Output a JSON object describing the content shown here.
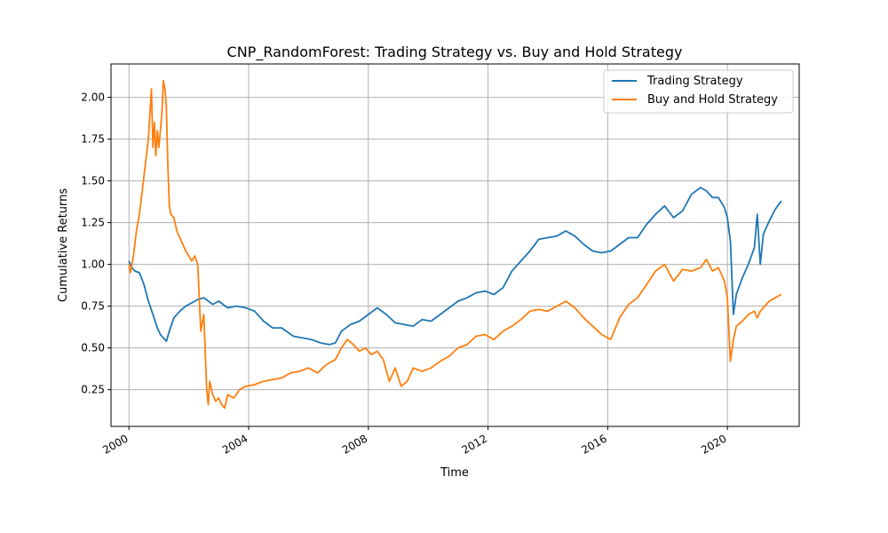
{
  "chart_data": {
    "type": "line",
    "title": "CNP_RandomForest: Trading Strategy vs. Buy and Hold Strategy",
    "xlabel": "Time",
    "ylabel": "Cumulative Returns",
    "xlim": [
      1999.4,
      2022.4
    ],
    "ylim": [
      0.03,
      2.2
    ],
    "x_ticks": [
      2000,
      2004,
      2008,
      2012,
      2016,
      2020
    ],
    "x_tick_labels": [
      "2000",
      "2004",
      "2008",
      "2012",
      "2016",
      "2020"
    ],
    "y_ticks": [
      0.25,
      0.5,
      0.75,
      1.0,
      1.25,
      1.5,
      1.75,
      2.0
    ],
    "y_tick_labels": [
      "0.25",
      "0.50",
      "0.75",
      "1.00",
      "1.25",
      "1.50",
      "1.75",
      "2.00"
    ],
    "grid": true,
    "legend_position": "top-right",
    "series": [
      {
        "name": "Trading Strategy",
        "color": "#1f77b4",
        "x": [
          2000.0,
          2000.1,
          2000.2,
          2000.35,
          2000.5,
          2000.65,
          2000.8,
          2000.95,
          2001.05,
          2001.15,
          2001.25,
          2001.35,
          2001.5,
          2001.7,
          2001.9,
          2002.1,
          2002.3,
          2002.5,
          2002.8,
          2003.0,
          2003.3,
          2003.6,
          2003.9,
          2004.2,
          2004.5,
          2004.8,
          2005.1,
          2005.5,
          2005.8,
          2006.1,
          2006.4,
          2006.7,
          2006.9,
          2007.1,
          2007.4,
          2007.7,
          2008.0,
          2008.3,
          2008.6,
          2008.9,
          2009.2,
          2009.5,
          2009.8,
          2010.1,
          2010.4,
          2010.7,
          2011.0,
          2011.3,
          2011.6,
          2011.9,
          2012.2,
          2012.5,
          2012.8,
          2013.1,
          2013.4,
          2013.7,
          2014.0,
          2014.3,
          2014.6,
          2014.9,
          2015.2,
          2015.5,
          2015.8,
          2016.1,
          2016.4,
          2016.7,
          2017.0,
          2017.3,
          2017.6,
          2017.9,
          2018.2,
          2018.5,
          2018.8,
          2019.1,
          2019.3,
          2019.5,
          2019.7,
          2019.9,
          2020.0,
          2020.1,
          2020.2,
          2020.3,
          2020.5,
          2020.7,
          2020.9,
          2021.0,
          2021.1,
          2021.2,
          2021.4,
          2021.6,
          2021.8
        ],
        "values": [
          1.02,
          0.98,
          0.96,
          0.95,
          0.88,
          0.78,
          0.7,
          0.62,
          0.58,
          0.56,
          0.54,
          0.6,
          0.68,
          0.72,
          0.75,
          0.77,
          0.79,
          0.8,
          0.76,
          0.78,
          0.74,
          0.75,
          0.74,
          0.72,
          0.66,
          0.62,
          0.62,
          0.57,
          0.56,
          0.55,
          0.53,
          0.52,
          0.53,
          0.6,
          0.64,
          0.66,
          0.7,
          0.74,
          0.7,
          0.65,
          0.64,
          0.63,
          0.67,
          0.66,
          0.7,
          0.74,
          0.78,
          0.8,
          0.83,
          0.84,
          0.82,
          0.86,
          0.96,
          1.02,
          1.08,
          1.15,
          1.16,
          1.17,
          1.2,
          1.17,
          1.12,
          1.08,
          1.07,
          1.08,
          1.12,
          1.16,
          1.16,
          1.24,
          1.3,
          1.35,
          1.28,
          1.32,
          1.42,
          1.46,
          1.44,
          1.4,
          1.4,
          1.34,
          1.28,
          1.14,
          0.7,
          0.82,
          0.92,
          1.0,
          1.1,
          1.3,
          1.0,
          1.18,
          1.26,
          1.33,
          1.38
        ]
      },
      {
        "name": "Buy and Hold Strategy",
        "color": "#ff7f0e",
        "x": [
          2000.0,
          2000.05,
          2000.15,
          2000.25,
          2000.35,
          2000.45,
          2000.55,
          2000.65,
          2000.75,
          2000.8,
          2000.85,
          2000.9,
          2000.95,
          2001.0,
          2001.1,
          2001.15,
          2001.2,
          2001.25,
          2001.3,
          2001.35,
          2001.4,
          2001.5,
          2001.6,
          2001.7,
          2001.8,
          2001.9,
          2002.0,
          2002.1,
          2002.2,
          2002.3,
          2002.4,
          2002.5,
          2002.6,
          2002.65,
          2002.7,
          2002.8,
          2002.9,
          2003.0,
          2003.1,
          2003.2,
          2003.3,
          2003.5,
          2003.7,
          2003.9,
          2004.2,
          2004.5,
          2004.8,
          2005.1,
          2005.4,
          2005.7,
          2006.0,
          2006.3,
          2006.6,
          2006.9,
          2007.1,
          2007.3,
          2007.5,
          2007.7,
          2007.9,
          2008.1,
          2008.3,
          2008.5,
          2008.7,
          2008.9,
          2009.1,
          2009.3,
          2009.5,
          2009.8,
          2010.1,
          2010.4,
          2010.7,
          2011.0,
          2011.3,
          2011.6,
          2011.9,
          2012.2,
          2012.5,
          2012.8,
          2013.1,
          2013.4,
          2013.7,
          2014.0,
          2014.3,
          2014.6,
          2014.9,
          2015.2,
          2015.5,
          2015.8,
          2016.1,
          2016.4,
          2016.7,
          2017.0,
          2017.3,
          2017.6,
          2017.9,
          2018.2,
          2018.5,
          2018.8,
          2019.1,
          2019.3,
          2019.5,
          2019.7,
          2019.9,
          2020.0,
          2020.1,
          2020.2,
          2020.3,
          2020.5,
          2020.7,
          2020.9,
          2021.0,
          2021.1,
          2021.2,
          2021.4,
          2021.6,
          2021.8
        ],
        "values": [
          1.0,
          0.95,
          1.05,
          1.2,
          1.3,
          1.45,
          1.6,
          1.75,
          2.05,
          1.7,
          1.85,
          1.65,
          1.8,
          1.7,
          1.9,
          2.1,
          2.05,
          1.95,
          1.6,
          1.35,
          1.3,
          1.28,
          1.2,
          1.16,
          1.12,
          1.08,
          1.05,
          1.02,
          1.05,
          1.0,
          0.6,
          0.7,
          0.25,
          0.16,
          0.3,
          0.22,
          0.18,
          0.2,
          0.16,
          0.14,
          0.22,
          0.2,
          0.25,
          0.27,
          0.28,
          0.3,
          0.31,
          0.32,
          0.35,
          0.36,
          0.38,
          0.35,
          0.4,
          0.43,
          0.5,
          0.55,
          0.52,
          0.48,
          0.5,
          0.46,
          0.48,
          0.43,
          0.3,
          0.38,
          0.27,
          0.3,
          0.38,
          0.36,
          0.38,
          0.42,
          0.45,
          0.5,
          0.52,
          0.57,
          0.58,
          0.55,
          0.6,
          0.63,
          0.67,
          0.72,
          0.73,
          0.72,
          0.75,
          0.78,
          0.74,
          0.68,
          0.63,
          0.58,
          0.55,
          0.68,
          0.76,
          0.8,
          0.88,
          0.96,
          1.0,
          0.9,
          0.97,
          0.96,
          0.98,
          1.03,
          0.96,
          0.98,
          0.9,
          0.8,
          0.42,
          0.55,
          0.63,
          0.66,
          0.7,
          0.72,
          0.68,
          0.72,
          0.74,
          0.78,
          0.8,
          0.82
        ]
      }
    ]
  }
}
